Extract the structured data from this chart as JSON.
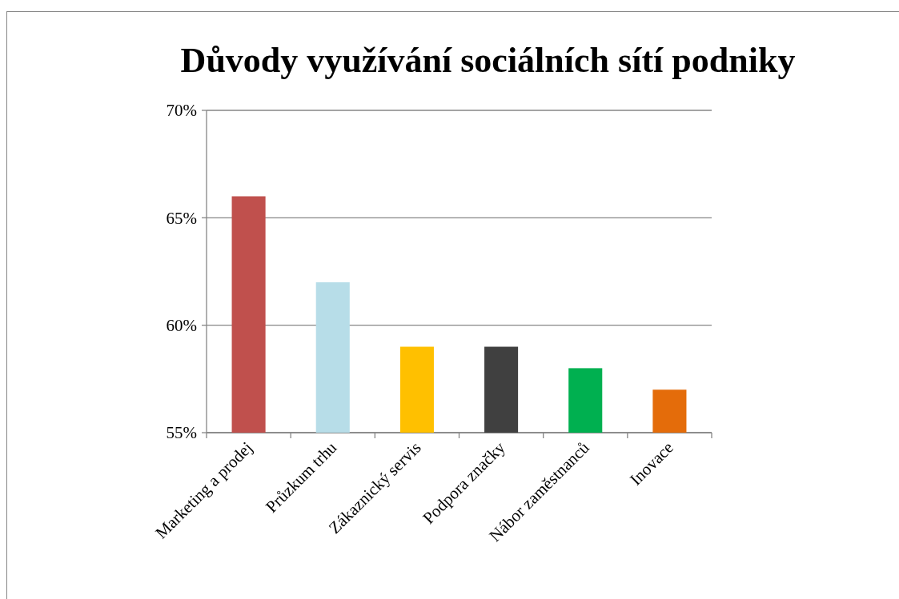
{
  "chart_data": {
    "type": "bar",
    "title": "Důvody využívání sociálních sítí podniky",
    "categories": [
      "Marketing a prodej",
      "Průzkum trhu",
      "Zákaznický servis",
      "Podpora značky",
      "Nábor zaměstnanců",
      "Inovace"
    ],
    "values": [
      0.66,
      0.62,
      0.59,
      0.59,
      0.58,
      0.57
    ],
    "colors": [
      "#c0504d",
      "#b7dde8",
      "#ffc000",
      "#404040",
      "#00b050",
      "#e46c0a"
    ],
    "ylim": [
      0.55,
      0.7
    ],
    "yticks": [
      {
        "value": 0.55,
        "label": "55%"
      },
      {
        "value": 0.6,
        "label": "60%"
      },
      {
        "value": 0.65,
        "label": "65%"
      },
      {
        "value": 0.7,
        "label": "70%"
      }
    ],
    "grid": "y"
  }
}
